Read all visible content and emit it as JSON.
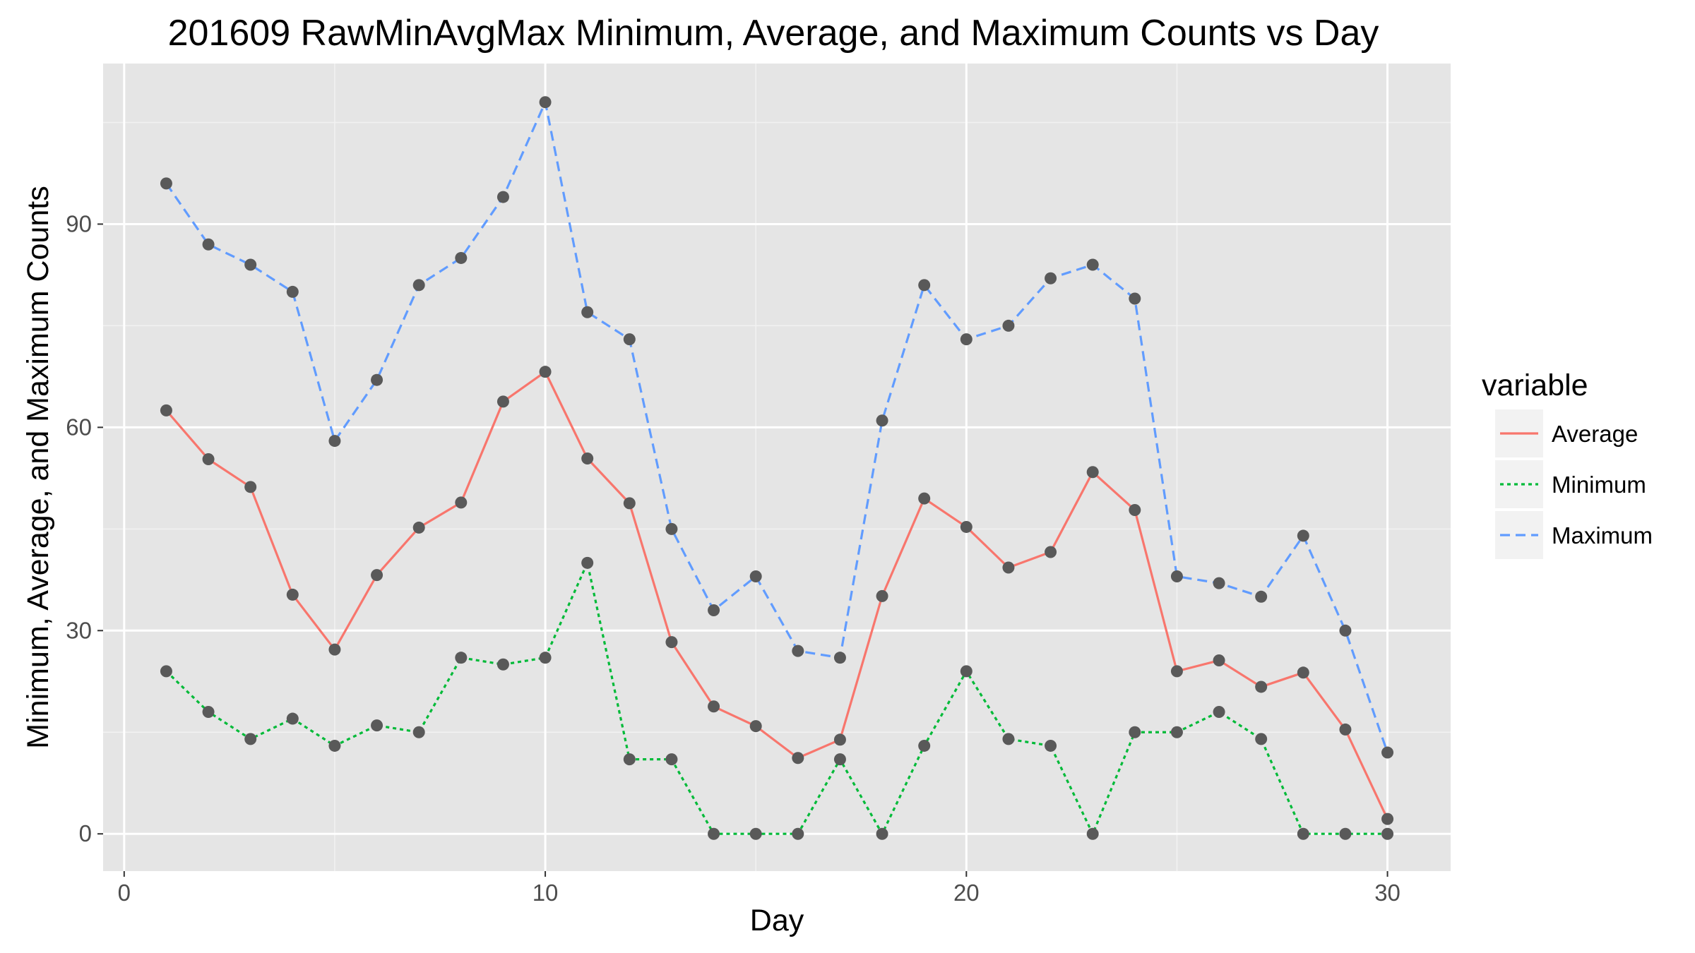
{
  "chart_data": {
    "type": "line",
    "title": "201609 RawMinAvgMax Minimum, Average, and Maximum Counts vs Day",
    "xlabel": "Day",
    "ylabel": "Minimum, Average, and Maximum Counts",
    "x": [
      1,
      2,
      3,
      4,
      5,
      6,
      7,
      8,
      9,
      10,
      11,
      12,
      13,
      14,
      15,
      16,
      17,
      18,
      19,
      20,
      21,
      22,
      23,
      24,
      25,
      26,
      27,
      28,
      29,
      30
    ],
    "xlim": [
      -0.5,
      31.5
    ],
    "ylim": [
      -5.5,
      113.7
    ],
    "x_ticks": [
      0,
      10,
      20,
      30
    ],
    "x_tick_labels": [
      "0",
      "10",
      "20",
      "30"
    ],
    "y_ticks": [
      0,
      30,
      60,
      90
    ],
    "y_tick_labels": [
      "0",
      "30",
      "60",
      "90"
    ],
    "grid": true,
    "legend": {
      "title": "variable",
      "position": "right"
    },
    "series": [
      {
        "name": "Average",
        "color": "#f8766d",
        "dash": "solid",
        "values": [
          62.5,
          55.3,
          51.2,
          35.3,
          27.2,
          38.2,
          45.2,
          48.9,
          63.8,
          68.2,
          55.4,
          48.8,
          28.3,
          18.8,
          15.9,
          11.2,
          13.9,
          35.1,
          49.5,
          45.3,
          39.3,
          41.6,
          53.4,
          47.8,
          24.0,
          25.6,
          21.7,
          23.8,
          15.4,
          2.2
        ]
      },
      {
        "name": "Minimum",
        "color": "#00ba38",
        "dash": "dotted",
        "values": [
          24,
          18,
          14,
          17,
          13,
          16,
          15,
          26,
          25,
          26,
          40,
          11,
          11,
          0,
          0,
          0,
          11,
          0,
          13,
          24,
          14,
          13,
          0,
          15,
          15,
          18,
          14,
          0,
          0,
          0
        ]
      },
      {
        "name": "Maximum",
        "color": "#619cff",
        "dash": "dashed",
        "values": [
          96,
          87,
          84,
          80,
          58,
          67,
          81,
          85,
          94,
          108,
          77,
          73,
          45,
          33,
          38,
          27,
          26,
          61,
          81,
          73,
          75,
          82,
          84,
          79,
          38,
          37,
          35,
          44,
          30,
          12
        ]
      }
    ],
    "point_color": "#595959"
  }
}
